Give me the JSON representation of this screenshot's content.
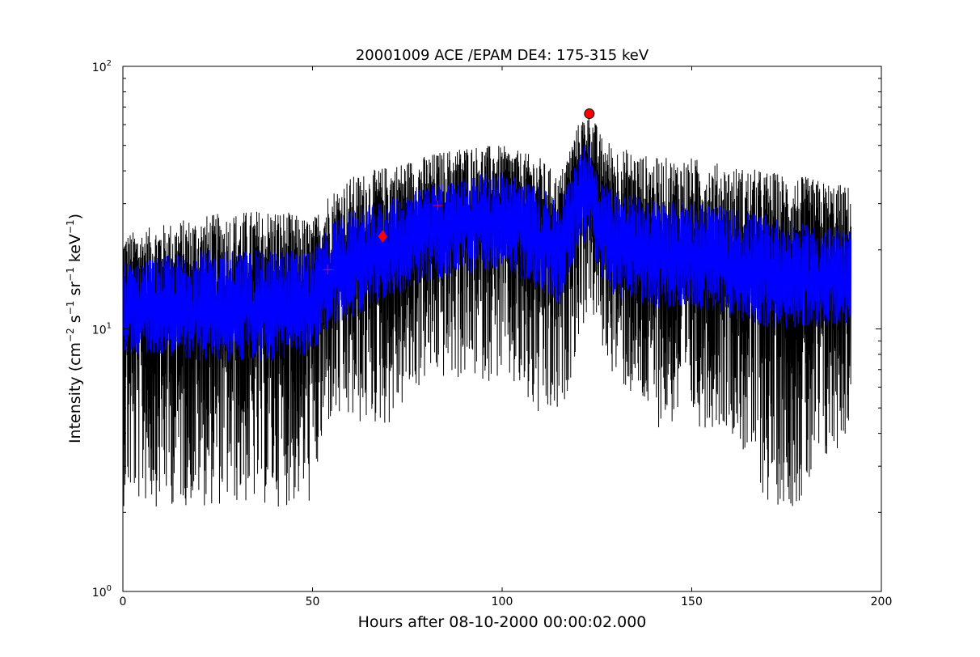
{
  "chart_data": {
    "type": "line",
    "title": "20001009 ACE /EPAM DE4: 175-315 keV",
    "xlabel": "Hours after 08-10-2000 00:00:02.000",
    "ylabel": {
      "prefix": "Intensity (cm",
      "exp1": "−2",
      "s": " s",
      "exp2": "−1",
      "sr": " sr",
      "exp3": "−1",
      "kev": " keV",
      "exp4": "−1",
      "suffix": ")"
    },
    "xlim": [
      0,
      200
    ],
    "ylim": [
      1,
      100
    ],
    "yscale": "log",
    "x_ticks": [
      0,
      50,
      100,
      150,
      200
    ],
    "x_tick_labels": [
      "0",
      "50",
      "100",
      "150",
      "200"
    ],
    "y_ticks": [
      1,
      10,
      100
    ],
    "y_tick_labels": [
      {
        "base": "10",
        "exp": "0"
      },
      {
        "base": "10",
        "exp": "1"
      },
      {
        "base": "10",
        "exp": "2"
      }
    ],
    "grid": false,
    "legend": "none",
    "x_range_data": [
      0,
      192
    ],
    "series": [
      {
        "color": "#000000",
        "style": "noisy line (raw counts)",
        "x": [
          0,
          10,
          20,
          30,
          40,
          50,
          54,
          60,
          70,
          80,
          90,
          100,
          110,
          115,
          120,
          123,
          126,
          130,
          140,
          150,
          160,
          170,
          180,
          192
        ],
        "y": [
          13,
          13,
          12,
          12,
          12,
          13,
          16,
          18,
          21,
          24,
          27,
          28,
          24,
          21,
          38,
          40,
          26,
          23,
          20,
          20,
          18,
          17,
          16,
          16
        ],
        "band_low": [
          2.1,
          2.1,
          2.1,
          2.1,
          2.1,
          2.1,
          4.2,
          4.2,
          4.2,
          6.3,
          6.3,
          6.3,
          4.2,
          4.2,
          8.5,
          12,
          8.5,
          6.3,
          4.2,
          4.2,
          4.2,
          2.1,
          2.1,
          4.2
        ],
        "band_high": [
          23,
          25,
          27,
          28,
          29,
          26,
          33,
          38,
          42,
          46,
          50,
          50,
          45,
          38,
          60,
          70,
          55,
          50,
          45,
          45,
          42,
          40,
          38,
          35
        ]
      },
      {
        "color": "#0000ff",
        "style": "smoothed noisy line",
        "x": [
          0,
          10,
          20,
          30,
          40,
          50,
          54,
          60,
          70,
          80,
          90,
          100,
          110,
          115,
          120,
          123,
          126,
          130,
          140,
          150,
          160,
          170,
          180,
          192
        ],
        "y": [
          12,
          12,
          11.5,
          11.5,
          11.5,
          12.5,
          15,
          17,
          20,
          23,
          25,
          26,
          22,
          19,
          33,
          35,
          24,
          21,
          19,
          19,
          17,
          16,
          15,
          15
        ],
        "band_low": [
          8,
          8,
          7.5,
          7.5,
          7.5,
          8,
          10,
          11,
          13,
          15,
          16,
          17,
          14,
          12,
          20,
          22,
          15,
          13,
          12,
          12,
          11,
          10,
          10,
          10
        ],
        "band_high": [
          18,
          19,
          20,
          20,
          20,
          20,
          25,
          28,
          31,
          35,
          38,
          40,
          35,
          30,
          48,
          52,
          38,
          34,
          31,
          31,
          29,
          27,
          25,
          24
        ]
      }
    ],
    "markers": [
      {
        "shape": "plus",
        "color": "#ff0000",
        "x": 54,
        "y": 16.8
      },
      {
        "shape": "diamond",
        "color": "#ff0000",
        "x": 68.5,
        "y": 22.5
      },
      {
        "shape": "plus",
        "color": "#ff0000",
        "x": 83,
        "y": 29.5
      },
      {
        "shape": "circle",
        "color": "#ff0000",
        "x": 123,
        "y": 66
      }
    ]
  }
}
